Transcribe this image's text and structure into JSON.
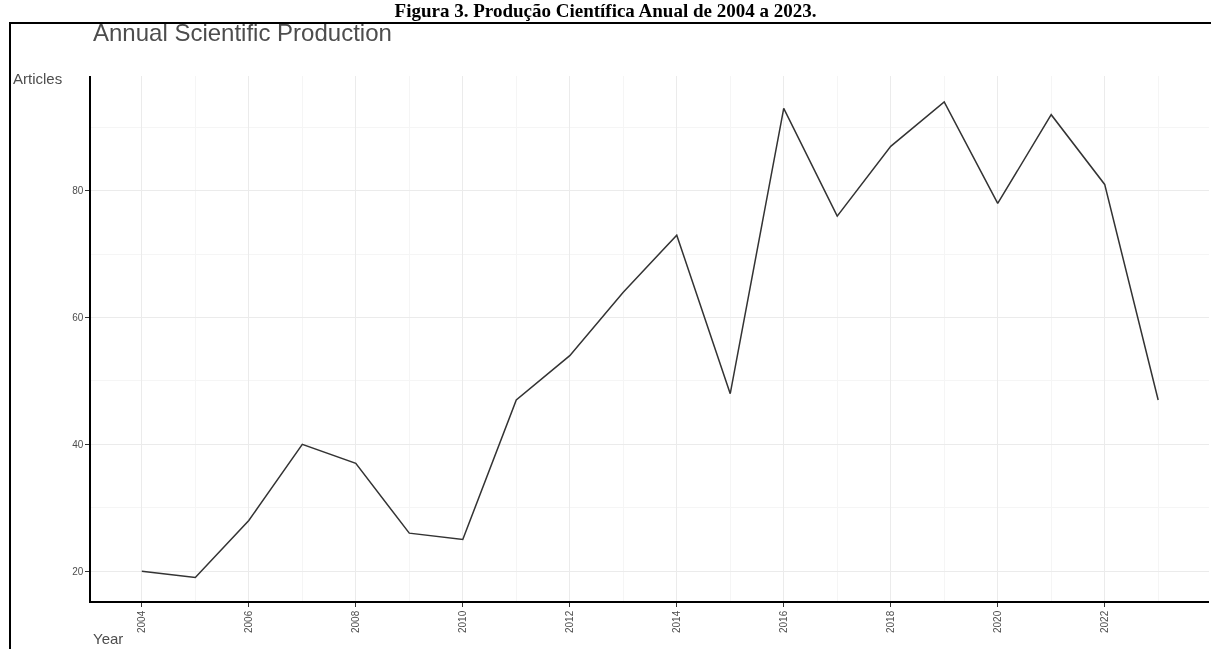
{
  "chart_data": {
    "type": "line",
    "title": "Figura 3. Produção Científica Anual de 2004 a 2023.",
    "subtitle": "Annual Scientific Production",
    "xlabel": "Year",
    "ylabel": "Articles",
    "x": [
      2004,
      2005,
      2006,
      2007,
      2008,
      2009,
      2010,
      2011,
      2012,
      2013,
      2014,
      2015,
      2016,
      2017,
      2018,
      2019,
      2020,
      2021,
      2022,
      2023
    ],
    "series": [
      {
        "color": "#333333",
        "values": [
          20,
          19,
          28,
          40,
          37,
          26,
          25,
          47,
          54,
          64,
          73,
          48,
          93,
          76,
          87,
          94,
          78,
          92,
          81,
          47
        ]
      }
    ],
    "xlim": [
      2003.05,
      2023.95
    ],
    "ylim": [
      15.3,
      98.1
    ],
    "xticks": [
      2004,
      2006,
      2008,
      2010,
      2012,
      2014,
      2016,
      2018,
      2020,
      2022
    ],
    "yticks": [
      20,
      40,
      60,
      80
    ],
    "grid": true,
    "marker": "none",
    "line_style": "solid"
  }
}
